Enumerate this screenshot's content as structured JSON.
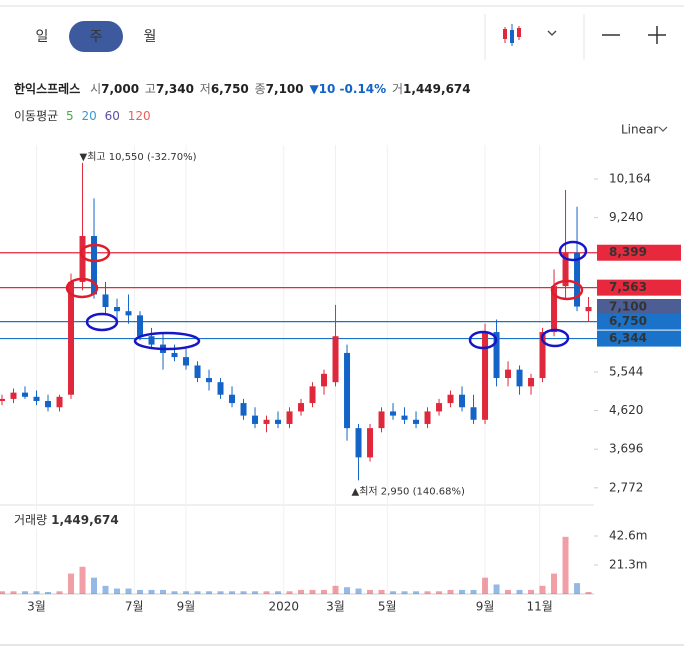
{
  "toolbar": {
    "tabs": [
      "일",
      "주",
      "월"
    ],
    "selected": 1
  },
  "chart_data": {
    "type": "candlestick",
    "stock_name": "한익스프레스",
    "summary": [
      {
        "label": "시",
        "value": "7,000"
      },
      {
        "label": "고",
        "value": "7,340"
      },
      {
        "label": "저",
        "value": "6,750"
      },
      {
        "label": "종",
        "value": "7,100"
      }
    ],
    "change": "▼10 -0.14%",
    "volume_summary": {
      "label": "거",
      "value": "1,449,674"
    },
    "ma_label": "이동평균",
    "moving_averages": [
      {
        "name": "5",
        "color": "#3cb043"
      },
      {
        "name": "20",
        "color": "#3a9ad9"
      },
      {
        "name": "60",
        "color": "#5e4fa2"
      },
      {
        "name": "120",
        "color": "#e8605c"
      }
    ],
    "scale_label": "Linear",
    "up_color": "#e0283c",
    "down_color": "#1464c8",
    "x": [
      0,
      2,
      4,
      6,
      8,
      10,
      12,
      14,
      16,
      18,
      20,
      22,
      24,
      26,
      28,
      30,
      32,
      34,
      36,
      38,
      40,
      42,
      44,
      46,
      48,
      50,
      52,
      54,
      56,
      58,
      60,
      62,
      64,
      66,
      68,
      70,
      72,
      74,
      76,
      78,
      80,
      82,
      84,
      86,
      88,
      90,
      92,
      94,
      96,
      98,
      100,
      102
    ],
    "open": [
      4850,
      4900,
      5050,
      4950,
      4850,
      4700,
      5000,
      7700,
      8800,
      7400,
      7100,
      7000,
      6900,
      6400,
      6200,
      6000,
      5900,
      5700,
      5400,
      5300,
      5000,
      4800,
      4500,
      4300,
      4400,
      4300,
      4600,
      4800,
      5200,
      5300,
      6000,
      4200,
      3500,
      4200,
      4600,
      4500,
      4400,
      4300,
      4600,
      4800,
      5000,
      4700,
      4400,
      6500,
      5400,
      5600,
      5200,
      5400,
      6500,
      7600,
      8400,
      7000
    ],
    "high": [
      5000,
      5150,
      5200,
      5100,
      5000,
      5000,
      7900,
      10550,
      9700,
      7700,
      7300,
      7400,
      7000,
      6600,
      6500,
      6200,
      6100,
      5800,
      5600,
      5400,
      5200,
      4900,
      4700,
      4500,
      4600,
      4700,
      4900,
      5300,
      5600,
      7150,
      6200,
      4300,
      4300,
      4700,
      4800,
      4700,
      4600,
      4700,
      4900,
      5100,
      5200,
      5000,
      6700,
      6800,
      5800,
      5700,
      5500,
      6600,
      8000,
      9900,
      9500,
      7340
    ],
    "low": [
      4750,
      4800,
      4900,
      4750,
      4600,
      4600,
      4900,
      7500,
      7300,
      6900,
      6800,
      6700,
      6300,
      6100,
      5600,
      5800,
      5600,
      5300,
      5100,
      4900,
      4700,
      4400,
      4200,
      4100,
      4200,
      4200,
      4500,
      4700,
      5000,
      5200,
      3900,
      2950,
      3400,
      4100,
      4400,
      4300,
      4200,
      4200,
      4500,
      4700,
      4600,
      4300,
      4300,
      5200,
      5200,
      5000,
      5000,
      5300,
      6400,
      7300,
      7000,
      6750
    ],
    "close": [
      4900,
      5050,
      4950,
      4850,
      4700,
      4950,
      7700,
      8800,
      7400,
      7100,
      7000,
      6900,
      6400,
      6200,
      6000,
      5900,
      5700,
      5400,
      5300,
      5000,
      4800,
      4500,
      4300,
      4400,
      4300,
      4600,
      4800,
      5200,
      5500,
      6400,
      4200,
      3500,
      4200,
      4600,
      4500,
      4400,
      4300,
      4600,
      4800,
      5000,
      4700,
      4400,
      6500,
      5400,
      5600,
      5200,
      5400,
      6500,
      7600,
      8400,
      7110,
      7100
    ],
    "volume": [
      2000000,
      2000000,
      2000000,
      2000000,
      1500000,
      2000000,
      15000000,
      20000000,
      12000000,
      6000000,
      4000000,
      4000000,
      3000000,
      3000000,
      3000000,
      2000000,
      2000000,
      2000000,
      2000000,
      2000000,
      2000000,
      2000000,
      2000000,
      2000000,
      2000000,
      2000000,
      3000000,
      3000000,
      3000000,
      6000000,
      5000000,
      4000000,
      3000000,
      3000000,
      2000000,
      2000000,
      2000000,
      2000000,
      2000000,
      3000000,
      3000000,
      3000000,
      12000000,
      7000000,
      3000000,
      3000000,
      3000000,
      6000000,
      15000000,
      42000000,
      8000000,
      1449674
    ],
    "xlim": [
      -0.35,
      102.95
    ],
    "xticks": [
      {
        "value": 6,
        "label": "3월"
      },
      {
        "value": 23,
        "label": "7월"
      },
      {
        "value": 32,
        "label": "9월"
      },
      {
        "value": 49,
        "label": "2020"
      },
      {
        "value": 58,
        "label": "3월"
      },
      {
        "value": 67,
        "label": "5월"
      },
      {
        "value": 84,
        "label": "9월"
      },
      {
        "value": 93.5,
        "label": "11월"
      }
    ],
    "ylim": [
      2360,
      10978
    ],
    "yticks": [
      {
        "value": 2772,
        "label": "2,772"
      },
      {
        "value": 3696,
        "label": "3,696"
      },
      {
        "value": 4620,
        "label": "4,620"
      },
      {
        "value": 5544,
        "label": "5,544"
      },
      {
        "value": 9240,
        "label": "9,240"
      },
      {
        "value": 10164,
        "label": "10,164"
      }
    ],
    "levels": [
      {
        "value": 8399,
        "label": "8,399",
        "color": "#e8283c",
        "line": true
      },
      {
        "value": 7563,
        "label": "7,563",
        "color": "#e8283c",
        "line": true
      },
      {
        "value": 7100,
        "label": "7,100",
        "color": "#4d5e94",
        "line": false
      },
      {
        "value": 6750,
        "label": "6,750",
        "color": "#1a73c8",
        "line": true
      },
      {
        "value": 6344,
        "label": "6,344",
        "color": "#1a73c8",
        "line": true
      }
    ],
    "high_annotation": {
      "text": "▼최고 10,550 (-32.70%)",
      "value": 10550,
      "x": 14
    },
    "low_annotation": {
      "text": "▲최저 2,950 (140.68%)",
      "value": 2950,
      "x": 62
    },
    "volume_panel": {
      "label": "거래량",
      "value": "1,449,674",
      "ylim": [
        0,
        63900000
      ],
      "yticks": [
        {
          "value": 21300000,
          "label": "21.3m"
        },
        {
          "value": 42600000,
          "label": "42.6m"
        }
      ]
    }
  }
}
